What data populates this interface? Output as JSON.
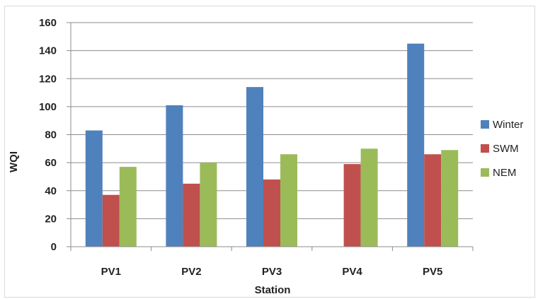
{
  "chart_data": {
    "type": "bar",
    "title": "",
    "xlabel": "Station",
    "ylabel": "WQI",
    "ylim": [
      0,
      160
    ],
    "yticks": [
      0,
      20,
      40,
      60,
      80,
      100,
      120,
      140,
      160
    ],
    "categories": [
      "PV1",
      "PV2",
      "PV3",
      "PV4",
      "PV5"
    ],
    "series": [
      {
        "name": "Winter",
        "color": "#4f81bd",
        "values": [
          83,
          101,
          114,
          0,
          145
        ]
      },
      {
        "name": "SWM",
        "color": "#c0504d",
        "values": [
          37,
          45,
          48,
          59,
          66
        ]
      },
      {
        "name": "NEM",
        "color": "#9bbb59",
        "values": [
          57,
          60,
          66,
          70,
          69
        ]
      }
    ],
    "grid": true,
    "legend_position": "right"
  }
}
